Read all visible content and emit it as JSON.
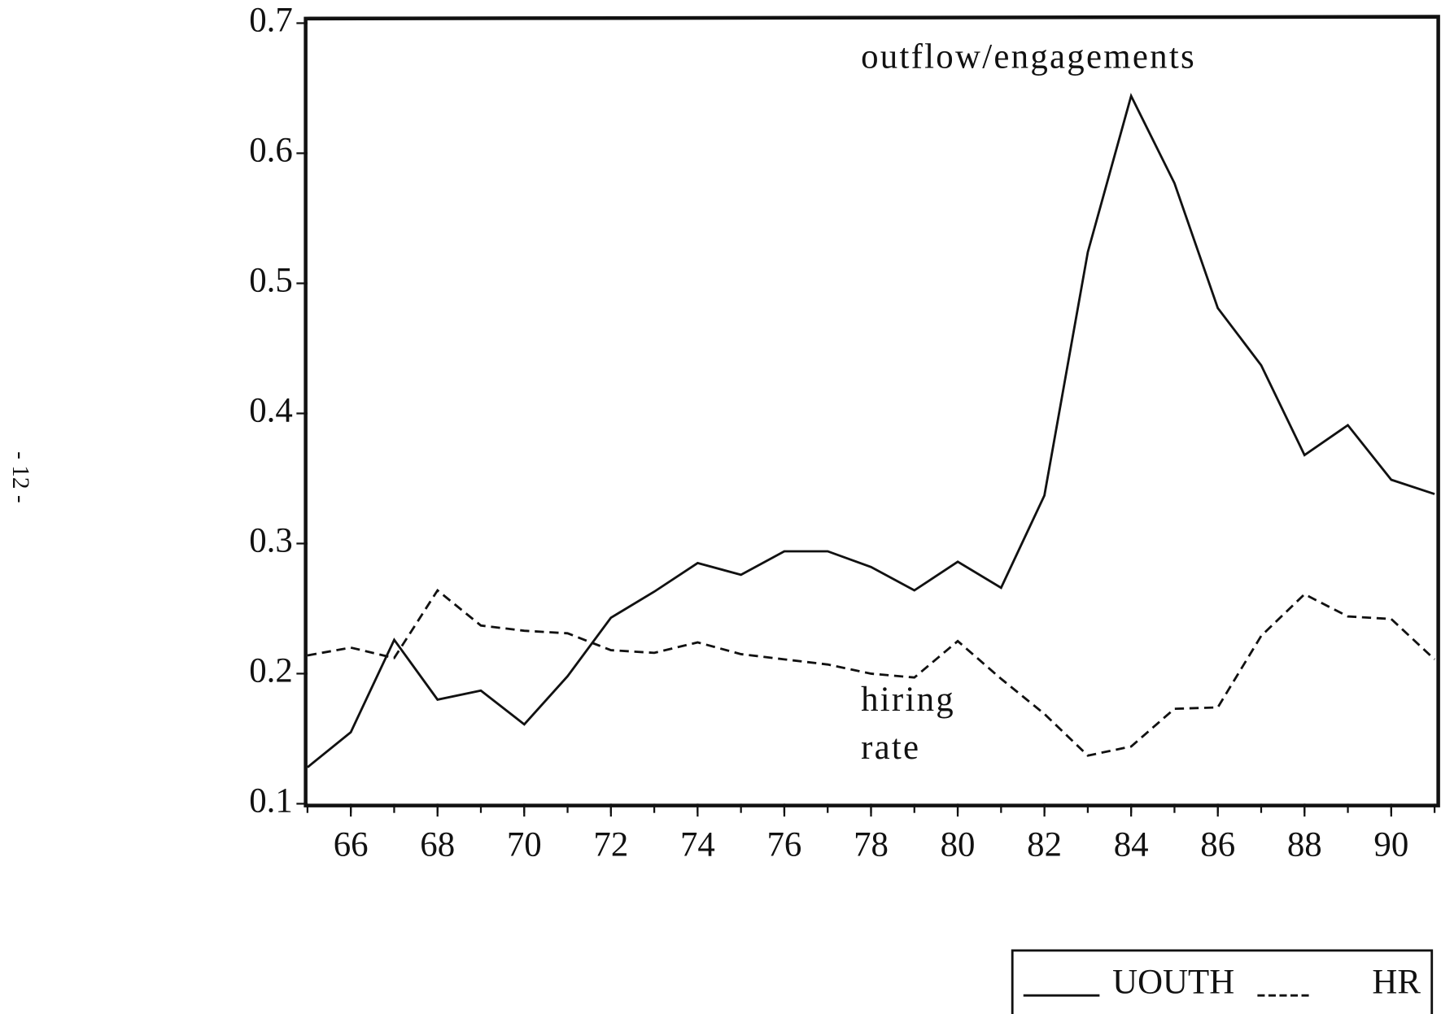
{
  "page_label": "- 12 -",
  "chart_data": {
    "type": "line",
    "annotations": [
      "outflow/engagements",
      "hiring",
      "rate"
    ],
    "x": [
      65,
      66,
      67,
      68,
      69,
      70,
      71,
      72,
      73,
      74,
      75,
      76,
      77,
      78,
      79,
      80,
      81,
      82,
      83,
      84,
      85,
      86,
      87,
      88,
      89,
      90,
      91
    ],
    "series": [
      {
        "name": "UOUTH",
        "color": "#111111",
        "style": "solid",
        "values": [
          0.128,
          0.155,
          0.226,
          0.18,
          0.187,
          0.161,
          0.198,
          0.243,
          0.263,
          0.285,
          0.276,
          0.294,
          0.294,
          0.282,
          0.264,
          0.286,
          0.266,
          0.337,
          0.524,
          0.644,
          0.577,
          0.481,
          0.437,
          0.368,
          0.391,
          0.349,
          0.338
        ]
      },
      {
        "name": "HR",
        "color": "#111111",
        "style": "dashed",
        "values": [
          0.214,
          0.22,
          0.212,
          0.264,
          0.237,
          0.233,
          0.231,
          0.218,
          0.216,
          0.224,
          0.215,
          0.211,
          0.207,
          0.2,
          0.197,
          0.225,
          0.196,
          0.169,
          0.137,
          0.144,
          0.173,
          0.174,
          0.229,
          0.261,
          0.244,
          0.242,
          0.211
        ]
      }
    ],
    "xlim": [
      65,
      91
    ],
    "xticks": [
      66,
      68,
      70,
      72,
      74,
      76,
      78,
      80,
      82,
      84,
      86,
      88,
      90
    ],
    "ylim": [
      0.1,
      0.7
    ],
    "yticks": [
      0.1,
      0.2,
      0.3,
      0.4,
      0.5,
      0.6,
      0.7
    ],
    "grid": false,
    "legend": "bottom-right"
  }
}
